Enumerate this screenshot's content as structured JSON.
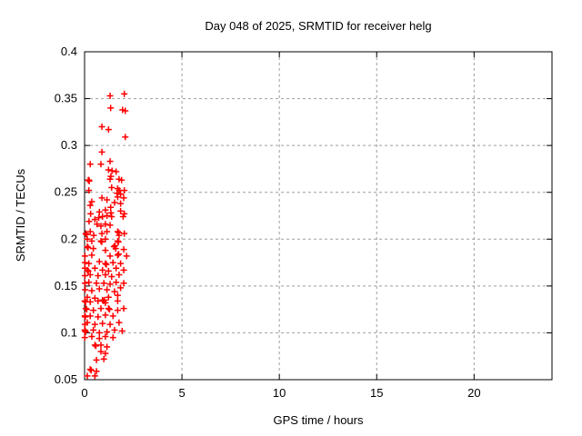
{
  "window": {
    "background": "#ffffff",
    "foreground": "#000000"
  },
  "chart_data": {
    "type": "scatter",
    "title": "Day 048 of 2025, SRMTID for receiver helg",
    "xlabel": "GPS time / hours",
    "ylabel": "SRMTID / TECUs",
    "xlim": [
      0,
      24
    ],
    "ylim": [
      0.05,
      0.4
    ],
    "xticks": [
      0,
      5,
      10,
      15,
      20
    ],
    "yticks": [
      0.05,
      0.1,
      0.15,
      0.2,
      0.25,
      0.3,
      0.35,
      0.4
    ],
    "grid": true,
    "legend_position": "none",
    "marker": {
      "shape": "plus",
      "color": "#ff0000",
      "size": 7
    },
    "axis_color": "#000000",
    "grid_color": "#9e9e9e",
    "series": [
      {
        "name": "SRMTID",
        "points": [
          [
            1.31,
            0.353
          ],
          [
            2.04,
            0.355
          ],
          [
            1.34,
            0.34
          ],
          [
            1.95,
            0.338
          ],
          [
            2.09,
            0.337
          ],
          [
            0.89,
            0.32
          ],
          [
            1.23,
            0.317
          ],
          [
            2.09,
            0.309
          ],
          [
            0.89,
            0.293
          ],
          [
            1.31,
            0.283
          ],
          [
            0.29,
            0.28
          ],
          [
            0.84,
            0.28
          ],
          [
            1.23,
            0.274
          ],
          [
            1.41,
            0.273
          ],
          [
            1.62,
            0.272
          ],
          [
            1.35,
            0.267
          ],
          [
            1.77,
            0.264
          ],
          [
            0.22,
            0.263
          ],
          [
            0.19,
            0.263
          ],
          [
            0.24,
            0.262
          ],
          [
            1.31,
            0.264
          ],
          [
            1.9,
            0.263
          ],
          [
            1.39,
            0.255
          ],
          [
            1.7,
            0.254
          ],
          [
            1.78,
            0.252
          ],
          [
            2.04,
            0.252
          ],
          [
            0.22,
            0.252
          ],
          [
            1.67,
            0.249
          ],
          [
            1.85,
            0.248
          ],
          [
            0.89,
            0.244
          ],
          [
            1.15,
            0.242
          ],
          [
            1.7,
            0.245
          ],
          [
            2.01,
            0.244
          ],
          [
            0.29,
            0.236
          ],
          [
            1.54,
            0.239
          ],
          [
            1.85,
            0.238
          ],
          [
            0.37,
            0.24
          ],
          [
            1.34,
            0.234
          ],
          [
            0.76,
            0.229
          ],
          [
            1.07,
            0.231
          ],
          [
            1.35,
            0.228
          ],
          [
            1.85,
            0.23
          ],
          [
            2.04,
            0.227
          ],
          [
            0.31,
            0.227
          ],
          [
            0.53,
            0.221
          ],
          [
            0.73,
            0.223
          ],
          [
            0.92,
            0.224
          ],
          [
            1.15,
            0.225
          ],
          [
            1.39,
            0.224
          ],
          [
            1.98,
            0.224
          ],
          [
            0.23,
            0.219
          ],
          [
            0.64,
            0.216
          ],
          [
            0.84,
            0.214
          ],
          [
            1.07,
            0.216
          ],
          [
            1.31,
            0.215
          ],
          [
            0.06,
            0.206
          ],
          [
            0.1,
            0.205
          ],
          [
            0.29,
            0.208
          ],
          [
            0.47,
            0.204
          ],
          [
            0.89,
            0.206
          ],
          [
            1.15,
            0.208
          ],
          [
            1.7,
            0.208
          ],
          [
            1.76,
            0.207
          ],
          [
            1.77,
            0.204
          ],
          [
            2.04,
            0.206
          ],
          [
            0.14,
            0.2
          ],
          [
            0.37,
            0.198
          ],
          [
            0.84,
            0.198
          ],
          [
            0.88,
            0.197
          ],
          [
            1.07,
            0.2
          ],
          [
            1.7,
            0.198
          ],
          [
            1.74,
            0.197
          ],
          [
            0.14,
            0.192
          ],
          [
            0.18,
            0.191
          ],
          [
            0.45,
            0.19
          ],
          [
            1.07,
            0.188
          ],
          [
            1.51,
            0.192
          ],
          [
            1.56,
            0.193
          ],
          [
            1.6,
            0.19
          ],
          [
            2.01,
            0.189
          ],
          [
            0.02,
            0.182
          ],
          [
            0.37,
            0.183
          ],
          [
            1.31,
            0.182
          ],
          [
            1.7,
            0.183
          ],
          [
            1.75,
            0.184
          ],
          [
            2.16,
            0.182
          ],
          [
            0.02,
            0.175
          ],
          [
            0.22,
            0.174
          ],
          [
            0.76,
            0.176
          ],
          [
            1.07,
            0.174
          ],
          [
            1.12,
            0.173
          ],
          [
            1.46,
            0.175
          ],
          [
            1.85,
            0.174
          ],
          [
            0.02,
            0.169
          ],
          [
            0.14,
            0.167
          ],
          [
            0.19,
            0.166
          ],
          [
            0.53,
            0.169
          ],
          [
            0.92,
            0.167
          ],
          [
            1.23,
            0.166
          ],
          [
            1.62,
            0.169
          ],
          [
            2.01,
            0.167
          ],
          [
            0.02,
            0.161
          ],
          [
            0.29,
            0.162
          ],
          [
            0.69,
            0.161
          ],
          [
            1.07,
            0.162
          ],
          [
            1.39,
            0.16
          ],
          [
            1.77,
            0.162
          ],
          [
            0.02,
            0.153
          ],
          [
            0.22,
            0.154
          ],
          [
            0.61,
            0.153
          ],
          [
            0.99,
            0.153
          ],
          [
            1.31,
            0.152
          ],
          [
            1.62,
            0.154
          ],
          [
            2.01,
            0.153
          ],
          [
            0.03,
            0.146
          ],
          [
            0.37,
            0.145
          ],
          [
            0.76,
            0.147
          ],
          [
            1.15,
            0.146
          ],
          [
            1.54,
            0.144
          ],
          [
            1.85,
            0.148
          ],
          [
            0.14,
            0.138
          ],
          [
            0.53,
            0.137
          ],
          [
            0.92,
            0.135
          ],
          [
            0.97,
            0.134
          ],
          [
            1.02,
            0.135
          ],
          [
            1.23,
            0.138
          ],
          [
            1.7,
            0.14
          ],
          [
            0.01,
            0.134
          ],
          [
            0.05,
            0.133
          ],
          [
            0.29,
            0.133
          ],
          [
            0.69,
            0.134
          ],
          [
            1.07,
            0.132
          ],
          [
            1.7,
            0.134
          ],
          [
            0.06,
            0.126
          ],
          [
            0.11,
            0.125
          ],
          [
            0.45,
            0.124
          ],
          [
            0.84,
            0.126
          ],
          [
            1.23,
            0.126
          ],
          [
            1.28,
            0.125
          ],
          [
            1.7,
            0.124
          ],
          [
            2.01,
            0.126
          ],
          [
            0.01,
            0.118
          ],
          [
            0.04,
            0.117
          ],
          [
            0.29,
            0.118
          ],
          [
            0.69,
            0.117
          ],
          [
            1.07,
            0.119
          ],
          [
            1.46,
            0.118
          ],
          [
            0.02,
            0.109
          ],
          [
            0.14,
            0.111
          ],
          [
            0.53,
            0.109
          ],
          [
            0.92,
            0.11
          ],
          [
            1.31,
            0.109
          ],
          [
            1.77,
            0.111
          ],
          [
            0.01,
            0.103
          ],
          [
            0.03,
            0.102
          ],
          [
            0.06,
            0.101
          ],
          [
            0.45,
            0.103
          ],
          [
            0.76,
            0.1
          ],
          [
            1.15,
            0.101
          ],
          [
            1.54,
            0.103
          ],
          [
            1.93,
            0.102
          ],
          [
            0.01,
            0.095
          ],
          [
            0.37,
            0.096
          ],
          [
            0.76,
            0.094
          ],
          [
            1.07,
            0.096
          ],
          [
            1.46,
            0.095
          ],
          [
            0.53,
            0.087
          ],
          [
            0.58,
            0.086
          ],
          [
            0.84,
            0.087
          ],
          [
            1.15,
            0.085
          ],
          [
            0.84,
            0.08
          ],
          [
            1.07,
            0.078
          ],
          [
            0.61,
            0.071
          ],
          [
            0.99,
            0.072
          ],
          [
            0.29,
            0.061
          ],
          [
            0.34,
            0.06
          ],
          [
            0.61,
            0.059
          ],
          [
            0.14,
            0.054
          ],
          [
            0.53,
            0.054
          ]
        ]
      }
    ]
  }
}
